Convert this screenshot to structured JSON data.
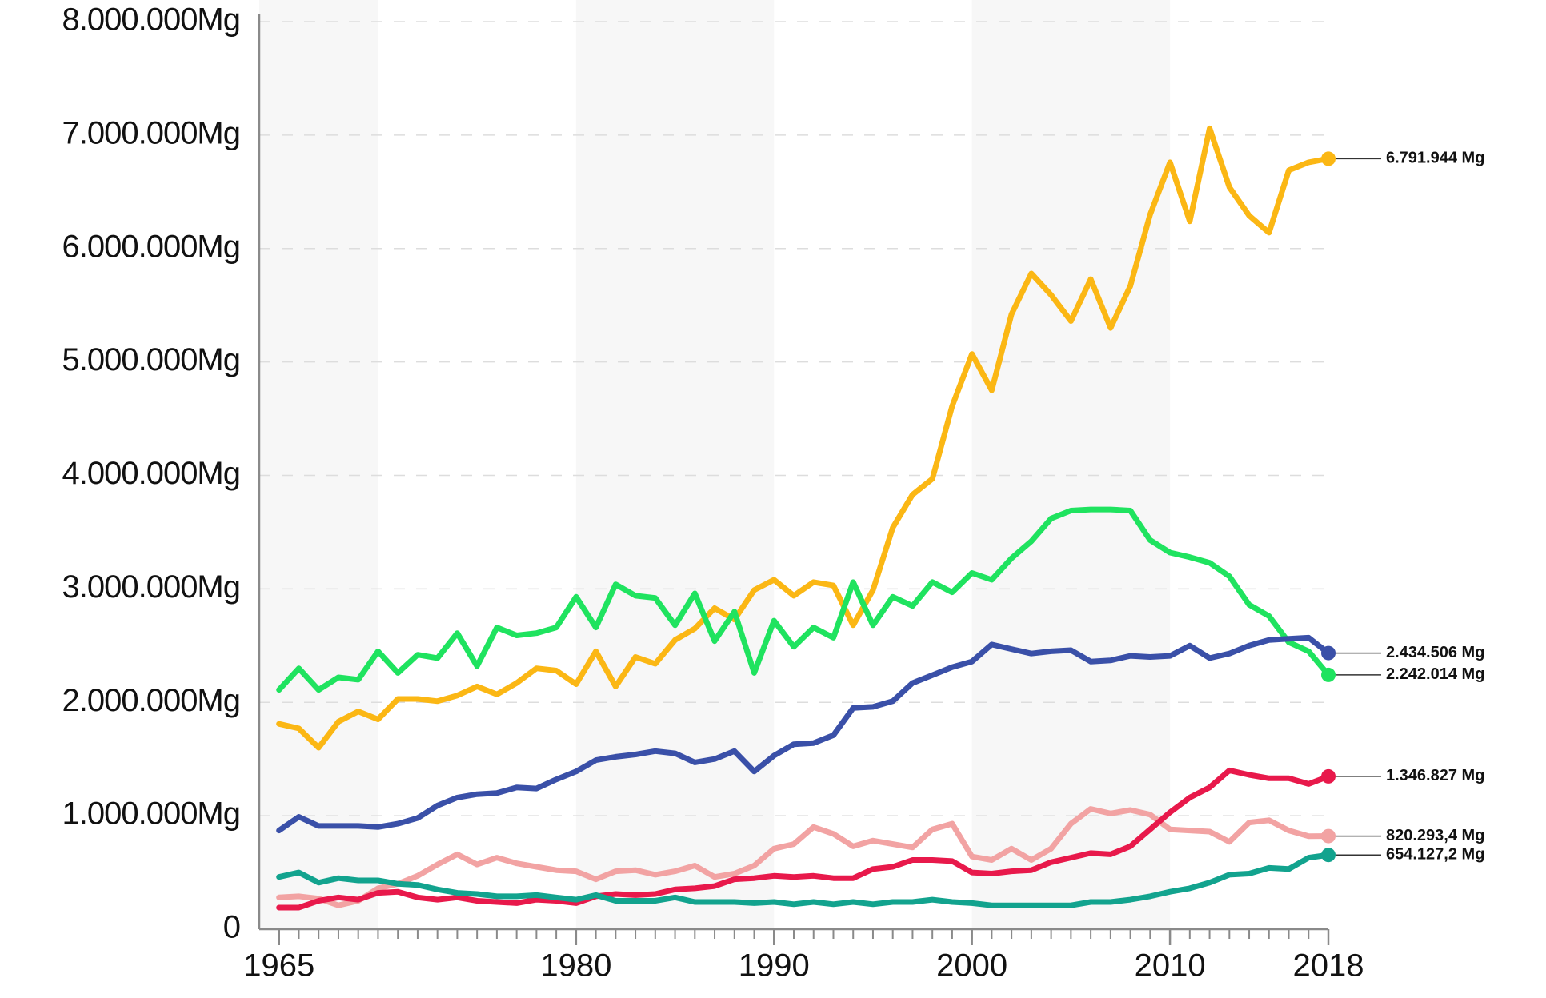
{
  "chart_data": {
    "type": "line",
    "x": [
      1965,
      1966,
      1967,
      1968,
      1969,
      1970,
      1971,
      1972,
      1973,
      1974,
      1975,
      1976,
      1977,
      1978,
      1979,
      1980,
      1981,
      1982,
      1983,
      1984,
      1985,
      1986,
      1987,
      1988,
      1989,
      1990,
      1991,
      1992,
      1993,
      1994,
      1995,
      1996,
      1997,
      1998,
      1999,
      2000,
      2001,
      2002,
      2003,
      2004,
      2005,
      2006,
      2007,
      2008,
      2009,
      2010,
      2011,
      2012,
      2013,
      2014,
      2015,
      2016,
      2017,
      2018
    ],
    "xlim": [
      1964,
      2018
    ],
    "xticks": [
      1965,
      1980,
      1990,
      2000,
      2010,
      2018
    ],
    "ylim": [
      0,
      8000000
    ],
    "yticks": [
      0,
      {
        "value": 1000000,
        "label": "1.000.000Mg"
      },
      {
        "value": 2000000,
        "label": "2.000.000Mg"
      },
      {
        "value": 3000000,
        "label": "3.000.000Mg"
      },
      {
        "value": 4000000,
        "label": "4.000.000Mg"
      },
      {
        "value": 5000000,
        "label": "5.000.000Mg"
      },
      {
        "value": 6000000,
        "label": "6.000.000Mg"
      },
      {
        "value": 7000000,
        "label": "7.000.000Mg"
      },
      {
        "value": 8000000,
        "label": "8.000.000Mg"
      }
    ],
    "grid": true,
    "bands": [
      [
        1964,
        1970
      ],
      [
        1980,
        1990
      ],
      [
        2000,
        2010
      ]
    ],
    "series": [
      {
        "color": "#fbb714",
        "values": [
          1810000,
          1770000,
          1600000,
          1830000,
          1920000,
          1850000,
          2030000,
          2030000,
          2010000,
          2060000,
          2140000,
          2070000,
          2170000,
          2300000,
          2280000,
          2160000,
          2450000,
          2140000,
          2400000,
          2340000,
          2550000,
          2650000,
          2830000,
          2730000,
          2990000,
          3080000,
          2940000,
          3060000,
          3030000,
          2680000,
          2990000,
          3540000,
          3830000,
          3970000,
          4610000,
          5070000,
          4750000,
          5420000,
          5780000,
          5590000,
          5360000,
          5730000,
          5300000,
          5670000,
          6300000,
          6760000,
          6240000,
          7060000,
          6540000,
          6290000,
          6140000,
          6690000,
          6760000,
          6791944
        ],
        "value_labels": [
          null,
          null,
          null,
          null,
          null,
          null,
          null,
          null,
          null,
          null,
          null,
          null,
          null,
          null,
          null,
          null,
          null,
          null,
          null,
          null,
          null,
          null,
          null,
          null,
          null,
          null,
          null,
          null,
          null,
          null,
          null,
          null,
          null,
          null,
          null,
          null,
          null,
          null,
          null,
          null,
          null,
          null,
          null,
          null,
          null,
          null,
          null,
          null,
          null,
          null,
          null,
          null,
          null,
          "6.791.944 Mg"
        ]
      },
      {
        "color": "#1fe35f",
        "values": [
          2110000,
          2300000,
          2110000,
          2220000,
          2200000,
          2450000,
          2260000,
          2420000,
          2390000,
          2610000,
          2320000,
          2660000,
          2590000,
          2610000,
          2660000,
          2930000,
          2660000,
          3040000,
          2940000,
          2920000,
          2680000,
          2960000,
          2540000,
          2800000,
          2260000,
          2720000,
          2490000,
          2660000,
          2570000,
          3060000,
          2680000,
          2930000,
          2850000,
          3060000,
          2970000,
          3140000,
          3080000,
          3270000,
          3420000,
          3620000,
          3690000,
          3700000,
          3700000,
          3690000,
          3430000,
          3320000,
          3280000,
          3230000,
          3110000,
          2860000,
          2760000,
          2530000,
          2450000,
          2242014
        ],
        "value_labels": [
          null,
          null,
          null,
          null,
          null,
          null,
          null,
          null,
          null,
          null,
          null,
          null,
          null,
          null,
          null,
          null,
          null,
          null,
          null,
          null,
          null,
          null,
          null,
          null,
          null,
          null,
          null,
          null,
          null,
          null,
          null,
          null,
          null,
          null,
          null,
          null,
          null,
          null,
          null,
          null,
          null,
          null,
          null,
          null,
          null,
          null,
          null,
          null,
          null,
          null,
          null,
          null,
          null,
          "2.242.014 Mg"
        ]
      },
      {
        "color": "#3a50a8",
        "values": [
          870000,
          990000,
          910000,
          910000,
          910000,
          900000,
          930000,
          980000,
          1090000,
          1160000,
          1190000,
          1200000,
          1250000,
          1240000,
          1320000,
          1390000,
          1490000,
          1520000,
          1540000,
          1570000,
          1550000,
          1470000,
          1500000,
          1570000,
          1390000,
          1530000,
          1630000,
          1640000,
          1710000,
          1950000,
          1960000,
          2010000,
          2170000,
          2240000,
          2310000,
          2360000,
          2510000,
          2470000,
          2430000,
          2450000,
          2460000,
          2360000,
          2370000,
          2410000,
          2400000,
          2410000,
          2500000,
          2390000,
          2430000,
          2500000,
          2550000,
          2560000,
          2570000,
          2434506
        ],
        "value_labels": [
          null,
          null,
          null,
          null,
          null,
          null,
          null,
          null,
          null,
          null,
          null,
          null,
          null,
          null,
          null,
          null,
          null,
          null,
          null,
          null,
          null,
          null,
          null,
          null,
          null,
          null,
          null,
          null,
          null,
          null,
          null,
          null,
          null,
          null,
          null,
          null,
          null,
          null,
          null,
          null,
          null,
          null,
          null,
          null,
          null,
          null,
          null,
          null,
          null,
          null,
          null,
          null,
          null,
          "2.434.506 Mg"
        ]
      },
      {
        "color": "#f2a3a3",
        "values": [
          280000,
          290000,
          270000,
          210000,
          250000,
          360000,
          400000,
          470000,
          570000,
          660000,
          570000,
          630000,
          580000,
          550000,
          520000,
          510000,
          440000,
          510000,
          520000,
          480000,
          510000,
          560000,
          460000,
          490000,
          560000,
          710000,
          750000,
          900000,
          840000,
          730000,
          780000,
          750000,
          720000,
          880000,
          930000,
          640000,
          610000,
          710000,
          610000,
          710000,
          930000,
          1060000,
          1020000,
          1050000,
          1010000,
          880000,
          870000,
          860000,
          770000,
          940000,
          960000,
          870000,
          820000,
          820293.4
        ],
        "value_labels": [
          null,
          null,
          null,
          null,
          null,
          null,
          null,
          null,
          null,
          null,
          null,
          null,
          null,
          null,
          null,
          null,
          null,
          null,
          null,
          null,
          null,
          null,
          null,
          null,
          null,
          null,
          null,
          null,
          null,
          null,
          null,
          null,
          null,
          null,
          null,
          null,
          null,
          null,
          null,
          null,
          null,
          null,
          null,
          null,
          null,
          null,
          null,
          null,
          null,
          null,
          null,
          null,
          null,
          "820.293,4 Mg"
        ]
      },
      {
        "color": "#e8194b",
        "values": [
          190000,
          190000,
          250000,
          280000,
          260000,
          320000,
          330000,
          280000,
          260000,
          280000,
          250000,
          240000,
          230000,
          260000,
          250000,
          230000,
          290000,
          310000,
          300000,
          310000,
          350000,
          360000,
          380000,
          440000,
          450000,
          470000,
          460000,
          470000,
          450000,
          450000,
          530000,
          550000,
          610000,
          610000,
          600000,
          500000,
          490000,
          510000,
          520000,
          590000,
          630000,
          670000,
          660000,
          730000,
          880000,
          1030000,
          1160000,
          1250000,
          1400000,
          1360000,
          1330000,
          1330000,
          1280000,
          1346827
        ],
        "value_labels": [
          null,
          null,
          null,
          null,
          null,
          null,
          null,
          null,
          null,
          null,
          null,
          null,
          null,
          null,
          null,
          null,
          null,
          null,
          null,
          null,
          null,
          null,
          null,
          null,
          null,
          null,
          null,
          null,
          null,
          null,
          null,
          null,
          null,
          null,
          null,
          null,
          null,
          null,
          null,
          null,
          null,
          null,
          null,
          null,
          null,
          null,
          null,
          null,
          null,
          null,
          null,
          null,
          null,
          "1.346.827 Mg"
        ]
      },
      {
        "color": "#12a38e",
        "values": [
          460000,
          500000,
          410000,
          450000,
          430000,
          430000,
          400000,
          390000,
          350000,
          320000,
          310000,
          290000,
          290000,
          300000,
          280000,
          260000,
          300000,
          250000,
          250000,
          250000,
          280000,
          240000,
          240000,
          240000,
          230000,
          240000,
          220000,
          240000,
          220000,
          240000,
          220000,
          240000,
          240000,
          260000,
          240000,
          230000,
          210000,
          210000,
          210000,
          210000,
          210000,
          240000,
          240000,
          260000,
          290000,
          330000,
          360000,
          410000,
          480000,
          490000,
          540000,
          530000,
          630000,
          654127.2
        ],
        "value_labels": [
          null,
          null,
          null,
          null,
          null,
          null,
          null,
          null,
          null,
          null,
          null,
          null,
          null,
          null,
          null,
          null,
          null,
          null,
          null,
          null,
          null,
          null,
          null,
          null,
          null,
          null,
          null,
          null,
          null,
          null,
          null,
          null,
          null,
          null,
          null,
          null,
          null,
          null,
          null,
          null,
          null,
          null,
          null,
          null,
          null,
          null,
          null,
          null,
          null,
          null,
          null,
          null,
          null,
          "654.127,2 Mg"
        ]
      }
    ]
  }
}
